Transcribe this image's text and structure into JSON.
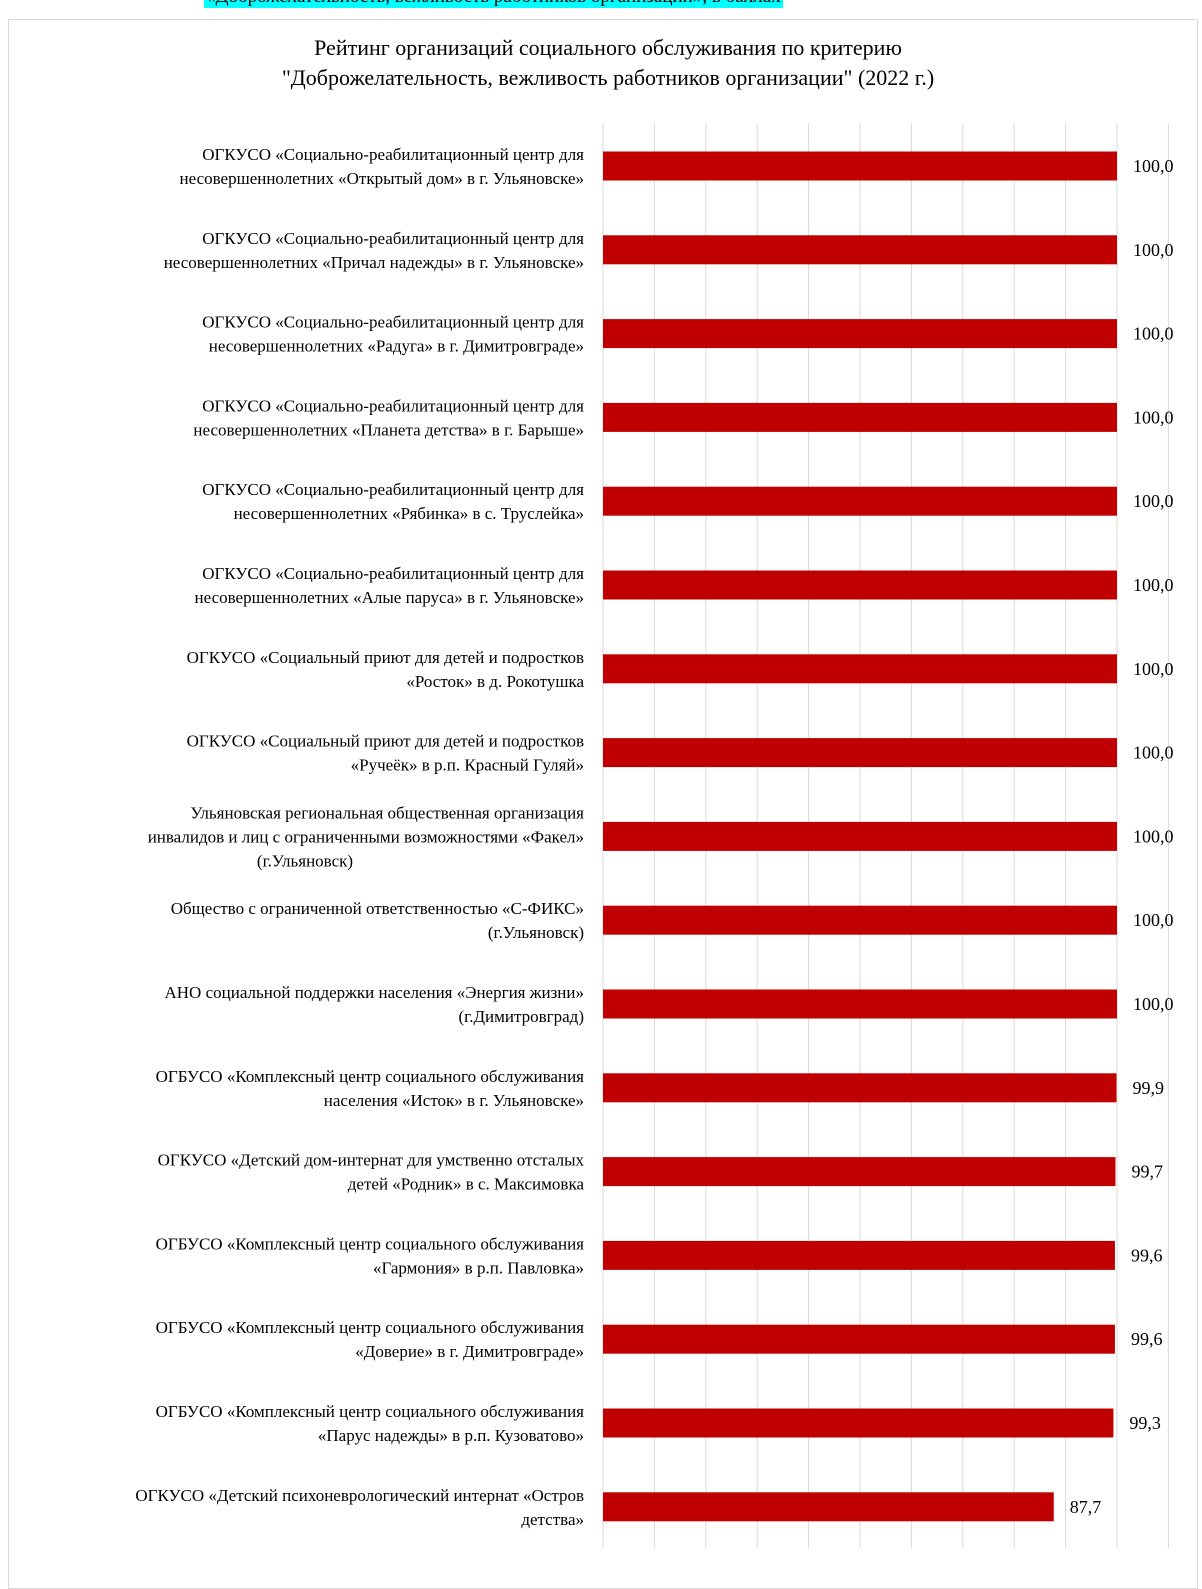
{
  "top_caption": "«Доброжелательность, вежливость работников организаций», в баллах",
  "chart_data": {
    "type": "bar",
    "orientation": "horizontal",
    "title_lines": [
      "Рейтинг организаций социального обслуживания по критерию",
      "\"Доброжелательность, вежливость работников организации\" (2022 г.)"
    ],
    "xlabel": "",
    "ylabel": "",
    "grid": true,
    "bar_color": "#c00000",
    "categories": [
      [
        "ОГКУСО «Социально-реабилитационный центр для",
        "несовершеннолетних «Открытый дом» в г. Ульяновске»"
      ],
      [
        "ОГКУСО «Социально-реабилитационный центр для",
        "несовершеннолетних «Причал надежды» в г. Ульяновске»"
      ],
      [
        "ОГКУСО «Социально-реабилитационный центр для",
        "несовершеннолетних «Радуга» в г. Димитровграде»"
      ],
      [
        "ОГКУСО «Социально-реабилитационный центр для",
        "несовершеннолетних «Планета детства» в г. Барыше»"
      ],
      [
        "ОГКУСО «Социально-реабилитационный центр для",
        "несовершеннолетних «Рябинка» в с. Труслейка»"
      ],
      [
        "ОГКУСО «Социально-реабилитационный центр для",
        "несовершеннолетних «Алые паруса» в г. Ульяновске»"
      ],
      [
        "ОГКУСО «Социальный приют для детей и подростков",
        "«Росток» в д. Рокотушка"
      ],
      [
        "ОГКУСО «Социальный приют для детей и подростков",
        "«Ручеёк» в р.п. Красный Гуляй»"
      ],
      [
        "Ульяновская региональная общественная организация",
        "инвалидов и лиц с ограниченными возможностями «Факел»",
        "(г.Ульяновск)"
      ],
      [
        "Общество с ограниченной ответственностью «С-ФИКС»",
        "(г.Ульяновск)"
      ],
      [
        "АНО социальной поддержки населения «Энергия жизни»",
        "(г.Димитровград)"
      ],
      [
        "ОГБУСО «Комплексный центр социального обслуживания",
        "населения «Исток» в г. Ульяновске»"
      ],
      [
        "ОГКУСО «Детский дом-интернат для умственно отсталых",
        "детей «Родник» в с. Максимовка"
      ],
      [
        "ОГБУСО «Комплексный центр социального обслуживания",
        "«Гармония» в р.п. Павловка»"
      ],
      [
        "ОГБУСО «Комплексный центр социального обслуживания",
        "«Доверие» в г. Димитровграде»"
      ],
      [
        "ОГБУСО «Комплексный центр социального обслуживания",
        "«Парус надежды» в р.п. Кузоватово»"
      ],
      [
        "ОГКУСО «Детский психоневрологический интернат «Остров",
        "детства»"
      ]
    ],
    "values": [
      100.0,
      100.0,
      100.0,
      100.0,
      100.0,
      100.0,
      100.0,
      100.0,
      100.0,
      100.0,
      100.0,
      99.9,
      99.7,
      99.6,
      99.6,
      99.3,
      87.7
    ],
    "value_labels": [
      "100,0",
      "100,0",
      "100,0",
      "100,0",
      "100,0",
      "100,0",
      "100,0",
      "100,0",
      "100,0",
      "100,0",
      "100,0",
      "99,9",
      "99,7",
      "99,6",
      "99,6",
      "99,3",
      "87,7"
    ]
  }
}
